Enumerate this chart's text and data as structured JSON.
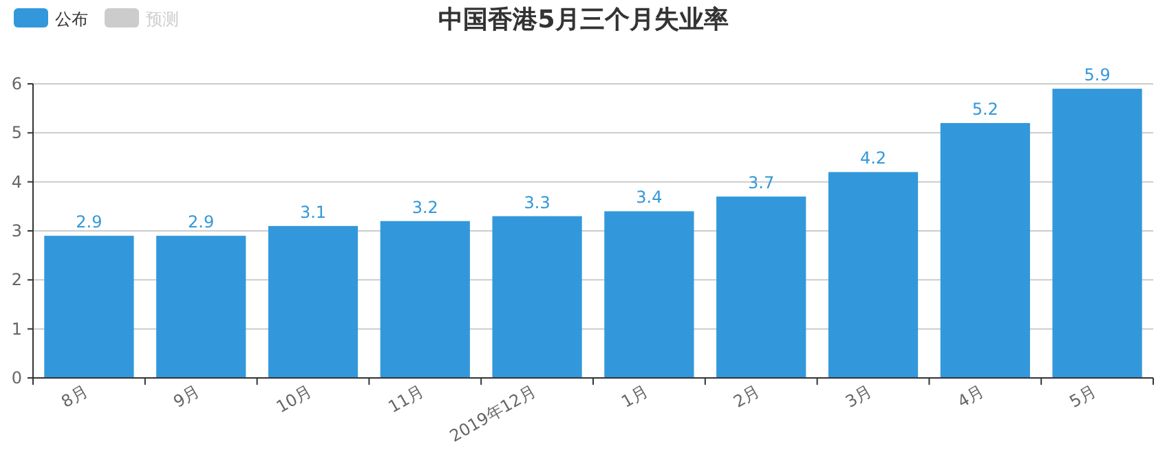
{
  "chart_data": {
    "type": "bar",
    "title": "中国香港5月三个月失业率",
    "categories": [
      "8月",
      "9月",
      "10月",
      "11月",
      "2019年12月",
      "1月",
      "2月",
      "3月",
      "4月",
      "5月"
    ],
    "series": [
      {
        "name": "公布",
        "color": "#3398db",
        "values": [
          2.9,
          2.9,
          3.1,
          3.2,
          3.3,
          3.4,
          3.7,
          4.2,
          5.2,
          5.9
        ]
      },
      {
        "name": "预测",
        "color": "#cccccc",
        "values": [
          null,
          null,
          null,
          null,
          null,
          null,
          null,
          null,
          null,
          null
        ]
      }
    ],
    "ylim": [
      0,
      6
    ],
    "yticks": [
      0,
      1,
      2,
      3,
      4,
      5,
      6
    ],
    "grid": "y",
    "legend": "top left",
    "data_labels": true
  }
}
